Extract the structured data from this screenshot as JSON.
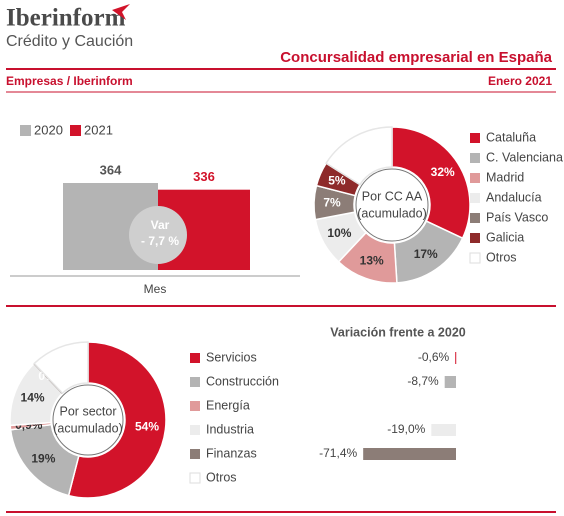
{
  "header": {
    "brand": "Iberinform",
    "brand_sub": "Crédito y Caución",
    "title": "Concursalidad empresarial en España",
    "source": "Empresas / Iberinform",
    "date": "Enero 2021"
  },
  "chart_data": [
    {
      "type": "bar",
      "categories": [
        "Mes"
      ],
      "series": [
        {
          "name": "2020",
          "color": "#b4b4b4",
          "values": [
            364
          ]
        },
        {
          "name": "2021",
          "color": "#d2132a",
          "values": [
            336
          ]
        }
      ],
      "annotation": [
        "Var",
        "- 7,7 %"
      ]
    },
    {
      "type": "donut",
      "center_label": [
        "Por CC AA",
        "(acumulado)"
      ],
      "categories": [
        "Cataluña",
        "C. Valenciana",
        "Madrid",
        "Andalucía",
        "País Vasco",
        "Galicia",
        "Otros"
      ],
      "values": [
        32,
        17,
        13,
        10,
        7,
        5,
        16
      ],
      "value_labels": [
        "32%",
        "17%",
        "13%",
        "10%",
        "7%",
        "5%",
        null
      ],
      "colors": [
        "#d2132a",
        "#b4b4b4",
        "#e09a9a",
        "#ececec",
        "#8c7d77",
        "#8e2a2a",
        "#ffffff"
      ]
    },
    {
      "type": "donut",
      "center_label": [
        "Por sector",
        "(acumulado)"
      ],
      "categories": [
        "Servicios",
        "Construcción",
        "Energía",
        "Industria",
        "Finanzas",
        "Otros"
      ],
      "values": [
        54,
        19,
        0.9,
        14,
        0,
        12.1
      ],
      "value_labels": [
        "54%",
        "19%",
        "0,9%",
        "14%",
        "0%",
        null
      ],
      "colors": [
        "#d2132a",
        "#b4b4b4",
        "#e09a9a",
        "#ececec",
        "#8c7d77",
        "#ffffff"
      ]
    },
    {
      "type": "hbar",
      "title": "Variación frente a 2020",
      "values": [
        -0.6,
        -8.7,
        null,
        -19.0,
        -71.4,
        null
      ],
      "value_labels": [
        "-0,6%",
        "-8,7%",
        null,
        "-19,0%",
        "-71,4%",
        null
      ],
      "colors": [
        "#d2132a",
        "#b4b4b4",
        "#e09a9a",
        "#ececec",
        "#8c7d77",
        "#ffffff"
      ]
    }
  ]
}
